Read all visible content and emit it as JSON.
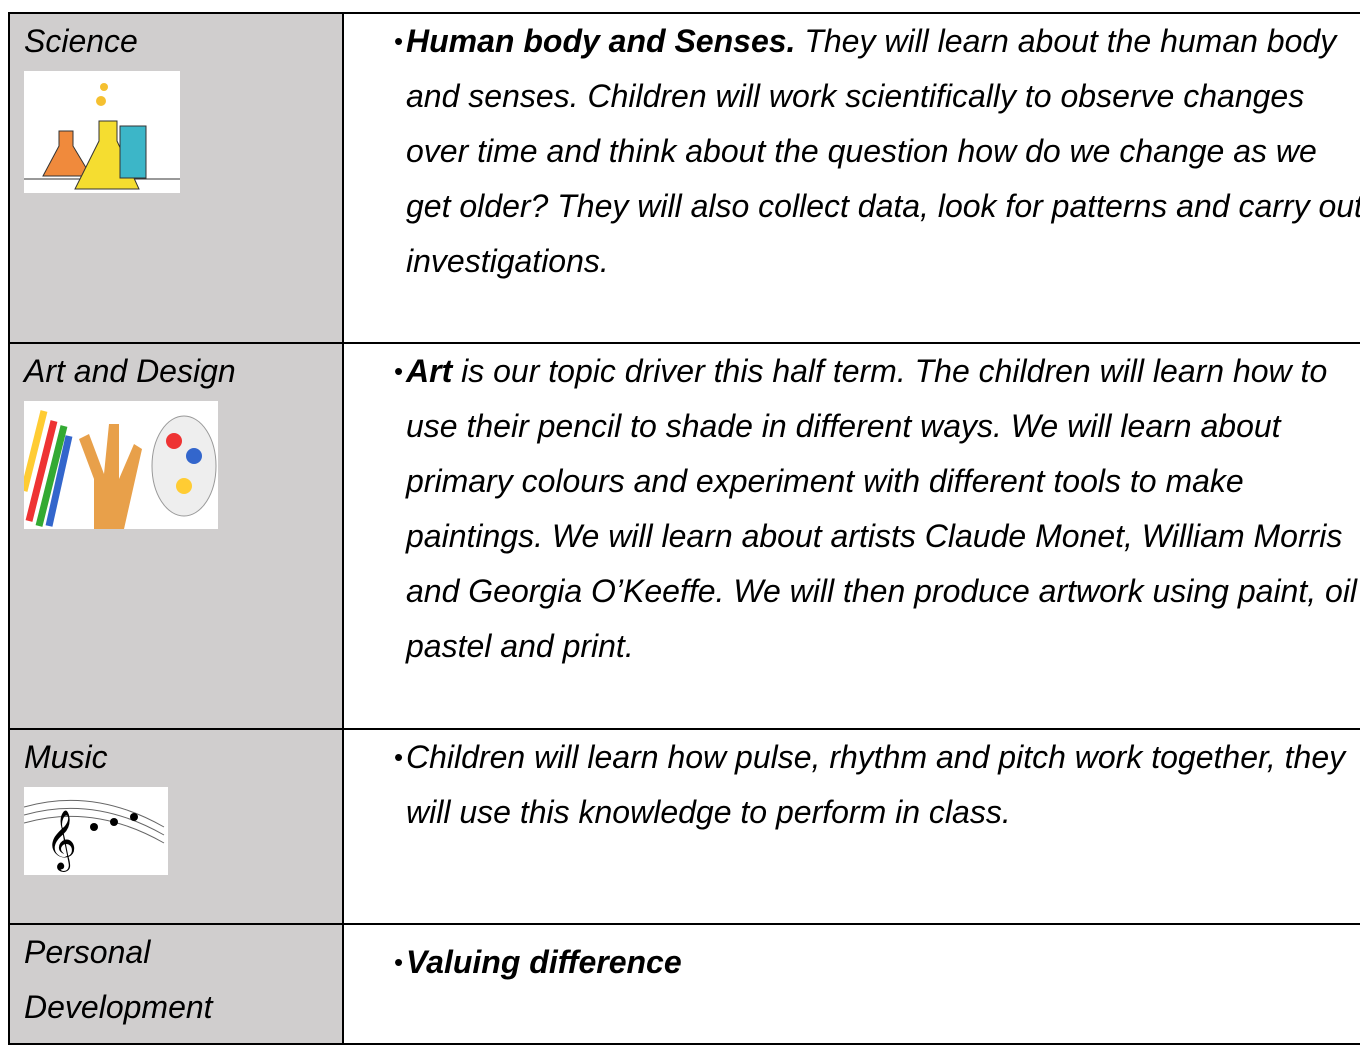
{
  "table": {
    "rows": [
      {
        "subject": "Science",
        "lead": "Human body and Senses.",
        "text": "They will learn about the human body and senses. Children will work scientifically to observe changes over time and think about the question how do we change as we get older? They will also collect data, look for patterns and carry out investigations."
      },
      {
        "subject": "Art and Design",
        "lead": "Art",
        "text": "is our topic driver this half term. The children will learn how to use their pencil to shade in different ways. We will learn about primary colours and experiment with different tools to make paintings. We will learn about artists Claude Monet, William Morris and Georgia O’Keeffe. We will then produce artwork using paint, oil pastel and print."
      },
      {
        "subject": "Music",
        "text": "Children will learn how pulse, rhythm and pitch work together, they will use this knowledge to perform in class."
      },
      {
        "subject": "Personal Development",
        "lead": "Valuing difference"
      }
    ]
  }
}
